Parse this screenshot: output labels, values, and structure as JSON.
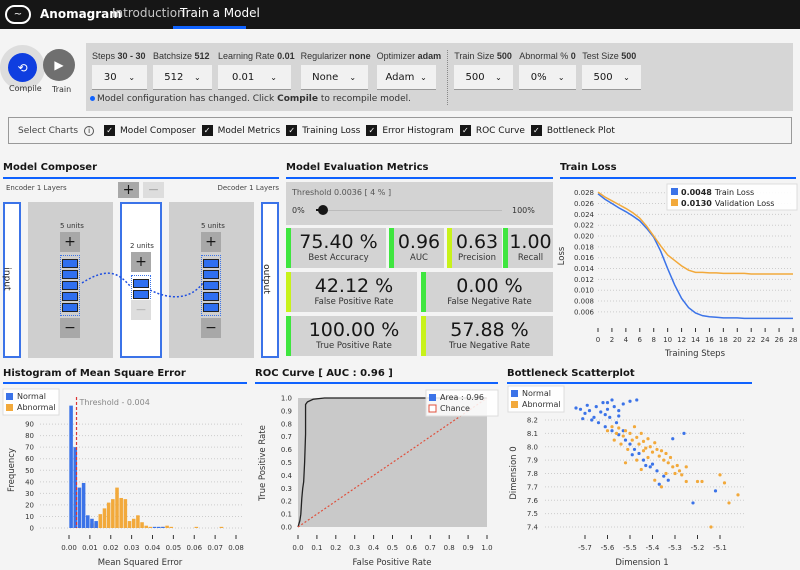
{
  "header": {
    "brand": "Anomagram",
    "nav": [
      "Introduction",
      "Train a Model"
    ],
    "active": "Train a Model"
  },
  "actions": {
    "compile": "Compile",
    "train": "Train"
  },
  "config": {
    "params": [
      {
        "label": "Steps",
        "value": "30 - 30",
        "selected": "30"
      },
      {
        "label": "Batchsize",
        "value": "512",
        "selected": "512"
      },
      {
        "label": "Learning Rate",
        "value": "0.01",
        "selected": "0.01"
      },
      {
        "label": "Regularizer",
        "value": "none",
        "selected": "None"
      },
      {
        "label": "Optimizer",
        "value": "adam",
        "selected": "Adam"
      },
      {
        "label": "Train Size",
        "value": "500",
        "selected": "500"
      },
      {
        "label": "Abnormal %",
        "value": "0",
        "selected": "0%"
      },
      {
        "label": "Test Size",
        "value": "500",
        "selected": "500"
      }
    ],
    "message_pre": "Model configuration has changed. Click",
    "message_bold": "Compile",
    "message_post": "to recompile model."
  },
  "select_charts": {
    "label": "Select Charts",
    "items": [
      "Model Composer",
      "Model Metrics",
      "Training Loss",
      "Error Histogram",
      "ROC Curve",
      "Bottleneck Plot"
    ]
  },
  "composer": {
    "title": "Model Composer",
    "encoder": "Encoder 1 Layers",
    "decoder": "Decoder 1 Layers",
    "input": "input",
    "output": "output",
    "enc_units": "5 units",
    "bottleneck_units": "2 units",
    "dec_units": "5 units",
    "plus": "+",
    "minus": "−"
  },
  "metrics": {
    "title": "Model Evaluation Metrics",
    "threshold": "Threshold 0.0036 [ 4 % ]",
    "slider_min": "0%",
    "slider_max": "100%",
    "slider_value": 4,
    "top": [
      {
        "v": "75.40 %",
        "l": "Best Accuracy"
      },
      {
        "v": "0.96",
        "l": "AUC"
      },
      {
        "v": "0.63",
        "l": "Precision"
      },
      {
        "v": "1.00",
        "l": "Recall"
      }
    ],
    "rows": [
      {
        "v": "42.12 %",
        "l": "False Positive Rate"
      },
      {
        "v": "0.00 %",
        "l": "False Negative Rate"
      },
      {
        "v": "100.00 %",
        "l": "True Positive Rate"
      },
      {
        "v": "57.88 %",
        "l": "True Negative Rate"
      }
    ]
  },
  "chart_data": [
    {
      "id": "loss",
      "type": "line",
      "title": "Train Loss",
      "xlabel": "Training Steps",
      "ylabel": "Loss",
      "xlim": [
        0,
        28
      ],
      "ylim": [
        0.0045,
        0.0285
      ],
      "xticks": [
        0,
        2,
        4,
        6,
        8,
        10,
        12,
        14,
        16,
        18,
        20,
        22,
        24,
        26,
        28
      ],
      "yticks": [
        "0.006",
        "0.008",
        "0.010",
        "0.012",
        "0.014",
        "0.016",
        "0.018",
        "0.020",
        "0.022",
        "0.024",
        "0.026",
        "0.028"
      ],
      "x": [
        0,
        1,
        2,
        3,
        4,
        5,
        6,
        7,
        8,
        9,
        10,
        11,
        12,
        13,
        14,
        15,
        16,
        17,
        18,
        19,
        20,
        21,
        22,
        23,
        24,
        25,
        26,
        27,
        28
      ],
      "series": [
        {
          "name": "Train Loss",
          "legend_value": "0.0048",
          "color": "#3b73e8",
          "values": [
            0.0278,
            0.0268,
            0.026,
            0.0252,
            0.0245,
            0.0237,
            0.0228,
            0.0214,
            0.0198,
            0.0172,
            0.014,
            0.011,
            0.0085,
            0.0068,
            0.0058,
            0.0053,
            0.0051,
            0.005,
            0.0049,
            0.0049,
            0.0049,
            0.0048,
            0.0048,
            0.0048,
            0.0048,
            0.0048,
            0.0048,
            0.0048,
            0.0048
          ]
        },
        {
          "name": "Validation Loss",
          "legend_value": "0.0130",
          "color": "#f2a93b",
          "values": [
            0.0281,
            0.0272,
            0.0265,
            0.0258,
            0.0251,
            0.0243,
            0.0233,
            0.0218,
            0.02,
            0.0182,
            0.0165,
            0.0155,
            0.0145,
            0.0137,
            0.0133,
            0.0133,
            0.0132,
            0.0132,
            0.0131,
            0.0131,
            0.0131,
            0.0131,
            0.013,
            0.013,
            0.013,
            0.013,
            0.013,
            0.013,
            0.013
          ]
        }
      ]
    },
    {
      "id": "hist",
      "type": "bar",
      "title": "Histogram of Mean Square Error",
      "xlabel": "Mean Squared Error",
      "ylabel": "Frequency",
      "xlim": [
        0,
        0.08
      ],
      "ylim": [
        0,
        110
      ],
      "xticks": [
        "0.00",
        "0.01",
        "0.02",
        "0.03",
        "0.04",
        "0.05",
        "0.06",
        "0.07",
        "0.08"
      ],
      "yticks": [
        0,
        10,
        20,
        30,
        40,
        50,
        60,
        70,
        80,
        90
      ],
      "threshold": 0.0036,
      "threshold_label": "Threshold - 0.004",
      "series": [
        {
          "name": "Normal",
          "color": "#3b73e8",
          "x": [
            0.001,
            0.003,
            0.005,
            0.007,
            0.009,
            0.011,
            0.013,
            0.041,
            0.043,
            0.045
          ],
          "values": [
            106,
            70,
            35,
            39,
            11,
            8,
            6,
            1,
            1,
            1
          ]
        },
        {
          "name": "Abnormal",
          "color": "#f2a93b",
          "x": [
            0.011,
            0.013,
            0.015,
            0.017,
            0.019,
            0.021,
            0.023,
            0.025,
            0.027,
            0.029,
            0.031,
            0.033,
            0.035,
            0.037,
            0.039,
            0.045,
            0.047,
            0.049,
            0.061,
            0.073
          ],
          "values": [
            4,
            4,
            12,
            17,
            22,
            25,
            35,
            26,
            25,
            6,
            8,
            11,
            5,
            2,
            1,
            1,
            2,
            1,
            1,
            1
          ]
        }
      ]
    },
    {
      "id": "roc",
      "type": "line",
      "title": "ROC Curve [ AUC : 0.96 ]",
      "xlabel": "False Positive Rate",
      "ylabel": "True Positive Rate",
      "xlim": [
        0,
        1
      ],
      "ylim": [
        0,
        1
      ],
      "ticks": [
        "0.0",
        "0.1",
        "0.2",
        "0.3",
        "0.4",
        "0.5",
        "0.6",
        "0.7",
        "0.8",
        "0.9",
        "1.0"
      ],
      "legend": [
        {
          "name": "Area : 0.96",
          "color": "#3b73e8"
        },
        {
          "name": "Chance",
          "color": "#e0503c"
        }
      ],
      "x": [
        0,
        0.01,
        0.015,
        0.02,
        0.025,
        0.03,
        0.035,
        0.04,
        0.04,
        0.05,
        0.08,
        0.14,
        1
      ],
      "y": [
        0,
        0.05,
        0.1,
        0.22,
        0.3,
        0.35,
        0.5,
        0.72,
        0.95,
        0.97,
        0.99,
        1,
        1
      ]
    },
    {
      "id": "scatter",
      "type": "scatter",
      "title": "Bottleneck Scatterplot",
      "xlabel": "Dimension 1",
      "ylabel": "Dimension 0",
      "xlim": [
        -5.8,
        -5.0
      ],
      "ylim": [
        7.35,
        8.35
      ],
      "xticks": [
        "-5.7",
        "-5.6",
        "-5.5",
        "-5.4",
        "-5.3",
        "-5.2",
        "-5.1"
      ],
      "yticks": [
        "7.4",
        "7.5",
        "7.6",
        "7.7",
        "7.8",
        "7.9",
        "8.0",
        "8.1",
        "8.2"
      ],
      "series": [
        {
          "name": "Normal",
          "color": "#3b73e8",
          "points": [
            [
              -5.72,
              8.28
            ],
            [
              -5.7,
              8.25
            ],
            [
              -5.68,
              8.27
            ],
            [
              -5.66,
              8.22
            ],
            [
              -5.65,
              8.3
            ],
            [
              -5.63,
              8.26
            ],
            [
              -5.62,
              8.33
            ],
            [
              -5.6,
              8.28
            ],
            [
              -5.58,
              8.35
            ],
            [
              -5.57,
              8.3
            ],
            [
              -5.55,
              8.27
            ],
            [
              -5.53,
              8.32
            ],
            [
              -5.47,
              8.35
            ],
            [
              -5.67,
              8.2
            ],
            [
              -5.64,
              8.18
            ],
            [
              -5.61,
              8.15
            ],
            [
              -5.58,
              8.12
            ],
            [
              -5.55,
              8.09
            ],
            [
              -5.52,
              8.05
            ],
            [
              -5.5,
              8.02
            ],
            [
              -5.48,
              7.98
            ],
            [
              -5.46,
              7.95
            ],
            [
              -5.44,
              7.9
            ],
            [
              -5.41,
              7.85
            ],
            [
              -5.38,
              7.82
            ],
            [
              -5.35,
              7.78
            ],
            [
              -5.33,
              7.75
            ],
            [
              -5.59,
              8.22
            ],
            [
              -5.56,
              8.18
            ],
            [
              -5.53,
              8.12
            ],
            [
              -5.49,
              7.94
            ],
            [
              -5.43,
              7.86
            ],
            [
              -5.4,
              7.87
            ],
            [
              -5.37,
              7.72
            ],
            [
              -5.22,
              7.58
            ],
            [
              -5.26,
              8.1
            ],
            [
              -5.31,
              8.06
            ],
            [
              -5.12,
              7.67
            ],
            [
              -5.69,
              8.31
            ],
            [
              -5.61,
              8.24
            ],
            [
              -5.55,
              8.23
            ],
            [
              -5.74,
              8.29
            ],
            [
              -5.71,
              8.21
            ],
            [
              -5.6,
              8.33
            ],
            [
              -5.5,
              8.34
            ]
          ]
        },
        {
          "name": "Abnormal",
          "color": "#f2a93b",
          "points": [
            [
              -5.6,
              8.12
            ],
            [
              -5.58,
              8.15
            ],
            [
              -5.56,
              8.1
            ],
            [
              -5.55,
              8.14
            ],
            [
              -5.53,
              8.08
            ],
            [
              -5.52,
              8.12
            ],
            [
              -5.5,
              8.1
            ],
            [
              -5.49,
              8.05
            ],
            [
              -5.48,
              8.15
            ],
            [
              -5.47,
              8.07
            ],
            [
              -5.46,
              8.02
            ],
            [
              -5.45,
              8.1
            ],
            [
              -5.44,
              8.04
            ],
            [
              -5.43,
              7.99
            ],
            [
              -5.42,
              8.06
            ],
            [
              -5.41,
              8.0
            ],
            [
              -5.4,
              7.96
            ],
            [
              -5.39,
              8.03
            ],
            [
              -5.38,
              7.98
            ],
            [
              -5.37,
              7.93
            ],
            [
              -5.36,
              7.97
            ],
            [
              -5.35,
              7.9
            ],
            [
              -5.34,
              7.95
            ],
            [
              -5.33,
              7.88
            ],
            [
              -5.32,
              7.92
            ],
            [
              -5.31,
              7.85
            ],
            [
              -5.3,
              7.8
            ],
            [
              -5.29,
              7.86
            ],
            [
              -5.28,
              7.82
            ],
            [
              -5.27,
              7.79
            ],
            [
              -5.25,
              7.85
            ],
            [
              -5.25,
              7.74
            ],
            [
              -5.2,
              7.74
            ],
            [
              -5.18,
              7.74
            ],
            [
              -5.1,
              7.79
            ],
            [
              -5.08,
              7.73
            ],
            [
              -5.02,
              7.64
            ],
            [
              -5.06,
              7.58
            ],
            [
              -5.14,
              7.4
            ],
            [
              -5.36,
              7.7
            ],
            [
              -5.39,
              7.75
            ],
            [
              -5.42,
              7.92
            ],
            [
              -5.47,
              7.9
            ],
            [
              -5.51,
              7.98
            ],
            [
              -5.54,
              8.02
            ],
            [
              -5.57,
              8.05
            ],
            [
              -5.45,
              7.83
            ],
            [
              -5.44,
              7.97
            ],
            [
              -5.52,
              7.88
            ],
            [
              -5.34,
              7.8
            ]
          ]
        }
      ]
    }
  ]
}
